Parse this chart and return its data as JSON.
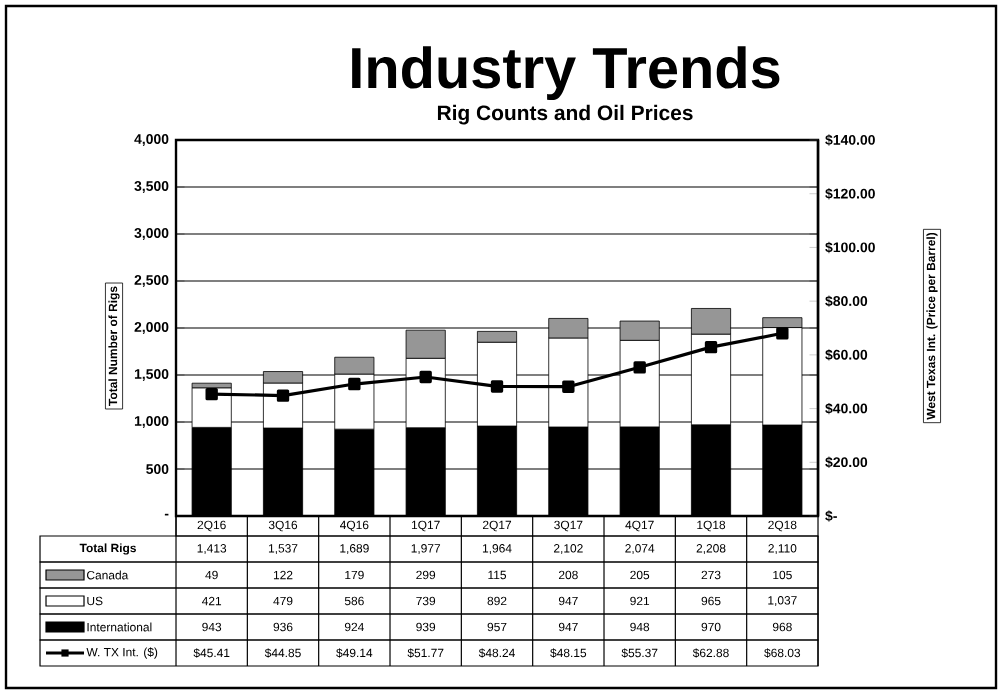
{
  "chart_data": {
    "type": "bar",
    "stacked": true,
    "title": "Industry Trends",
    "subtitle": "Rig Counts and Oil Prices",
    "ylabel": "Total Number of Rigs",
    "y2label": "West Texas Int. (Price per Barrel)",
    "categories": [
      "2Q16",
      "3Q16",
      "4Q16",
      "1Q17",
      "2Q17",
      "3Q17",
      "4Q17",
      "1Q18",
      "2Q18"
    ],
    "series": [
      {
        "name": "International",
        "color": "#000000",
        "values": [
          943,
          936,
          924,
          939,
          957,
          947,
          948,
          970,
          968
        ],
        "value_labels": [
          "943",
          "936",
          "924",
          "939",
          "957",
          "947",
          "948",
          "970",
          "968"
        ]
      },
      {
        "name": "US",
        "color": "#ffffff",
        "values": [
          421,
          479,
          586,
          739,
          892,
          947,
          921,
          965,
          1037
        ],
        "value_labels": [
          "421",
          "479",
          "586",
          "739",
          "892",
          "947",
          "921",
          "965",
          "1,037"
        ]
      },
      {
        "name": "Canada",
        "color": "#969696",
        "values": [
          49,
          122,
          179,
          299,
          115,
          208,
          205,
          273,
          105
        ],
        "value_labels": [
          "49",
          "122",
          "179",
          "299",
          "115",
          "208",
          "205",
          "273",
          "105"
        ]
      },
      {
        "name": "W. TX Int. ($)",
        "type": "line",
        "axis": "y2",
        "color": "#000000",
        "marker": "square",
        "line_style": "solid",
        "values": [
          45.41,
          44.85,
          49.14,
          51.77,
          48.24,
          48.15,
          55.37,
          62.88,
          68.03
        ],
        "value_labels": [
          "$45.41",
          "$44.85",
          "$49.14",
          "$51.77",
          "$48.24",
          "$48.15",
          "$55.37",
          "$62.88",
          "$68.03"
        ]
      }
    ],
    "totals": [
      "1,413",
      "1,537",
      "1,689",
      "1,977",
      "1,964",
      "2,102",
      "2,074",
      "2,208",
      "2,110"
    ],
    "annotations": [
      "Total Rigs"
    ],
    "ylim": [
      0,
      4000
    ],
    "yticks": [
      {
        "value": 0,
        "label": "-"
      },
      500,
      {
        "value": 1000,
        "label": "1,000"
      },
      {
        "value": 1500,
        "label": "1,500"
      },
      {
        "value": 2000,
        "label": "2,000"
      },
      {
        "value": 2500,
        "label": "2,500"
      },
      {
        "value": 3000,
        "label": "3,000"
      },
      {
        "value": 3500,
        "label": "3,500"
      },
      {
        "value": 4000,
        "label": "4,000"
      }
    ],
    "y2lim": [
      0,
      140
    ],
    "y2ticks": [
      {
        "value": 0,
        "label": "$-"
      },
      {
        "value": 20,
        "label": "$20.00"
      },
      {
        "value": 40,
        "label": "$40.00"
      },
      {
        "value": 60,
        "label": "$60.00"
      },
      {
        "value": 80,
        "label": "$80.00"
      },
      {
        "value": 100,
        "label": "$100.00"
      },
      {
        "value": 120,
        "label": "$120.00"
      },
      {
        "value": 140,
        "label": "$140.00"
      }
    ],
    "grid": "y",
    "legend": "bottom"
  }
}
